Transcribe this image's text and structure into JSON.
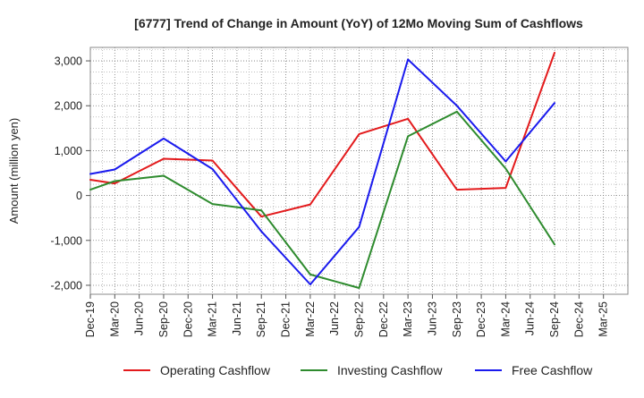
{
  "chart_data": {
    "type": "line",
    "title": "[6777]  Trend of Change in Amount (YoY) of 12Mo Moving Sum of Cashflows",
    "xlabel": "",
    "ylabel": "Amount (million yen)",
    "ylim": [
      -2200,
      3300
    ],
    "yticks": [
      -2000,
      -1000,
      0,
      1000,
      2000,
      3000
    ],
    "ytick_labels": [
      "-2,000",
      "-1,000",
      "0",
      "1,000",
      "2,000",
      "3,000"
    ],
    "categories": [
      "Dec-19",
      "Mar-20",
      "Jun-20",
      "Sep-20",
      "Dec-20",
      "Mar-21",
      "Jun-21",
      "Sep-21",
      "Dec-21",
      "Mar-22",
      "Jun-22",
      "Sep-22",
      "Dec-22",
      "Mar-23",
      "Jun-23",
      "Sep-23",
      "Dec-23",
      "Mar-24",
      "Jun-24",
      "Sep-24",
      "Dec-24",
      "Mar-25"
    ],
    "grid": true,
    "legend_position": "bottom",
    "series": [
      {
        "name": "Operating Cashflow",
        "color": "#e31a1c",
        "points": [
          [
            0,
            350
          ],
          [
            1,
            270
          ],
          [
            3,
            820
          ],
          [
            5,
            780
          ],
          [
            7,
            -470
          ],
          [
            9,
            -200
          ],
          [
            11,
            1370
          ],
          [
            13,
            1710
          ],
          [
            15,
            130
          ],
          [
            17,
            170
          ],
          [
            19,
            3180
          ]
        ]
      },
      {
        "name": "Investing Cashflow",
        "color": "#2e8b2e",
        "points": [
          [
            0,
            130
          ],
          [
            1,
            320
          ],
          [
            3,
            440
          ],
          [
            5,
            -190
          ],
          [
            7,
            -330
          ],
          [
            9,
            -1760
          ],
          [
            11,
            -2060
          ],
          [
            13,
            1320
          ],
          [
            15,
            1870
          ],
          [
            17,
            600
          ],
          [
            19,
            -1090
          ]
        ]
      },
      {
        "name": "Free Cashflow",
        "color": "#1a1aee",
        "points": [
          [
            0,
            480
          ],
          [
            1,
            580
          ],
          [
            3,
            1270
          ],
          [
            5,
            590
          ],
          [
            7,
            -800
          ],
          [
            9,
            -1980
          ],
          [
            11,
            -700
          ],
          [
            13,
            3030
          ],
          [
            15,
            2000
          ],
          [
            17,
            760
          ],
          [
            19,
            2060
          ]
        ]
      }
    ]
  }
}
